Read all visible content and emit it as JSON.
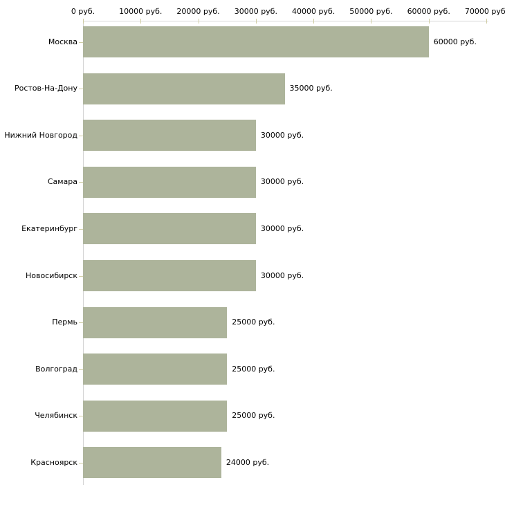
{
  "chart_data": {
    "type": "bar",
    "orientation": "horizontal",
    "title": "",
    "xlabel": "",
    "ylabel": "",
    "categories": [
      "Москва",
      "Ростов-На-Дону",
      "Нижний Новгород",
      "Самара",
      "Екатеринбург",
      "Новосибирск",
      "Пермь",
      "Волгоград",
      "Челябинск",
      "Красноярск"
    ],
    "values": [
      60000,
      35000,
      30000,
      30000,
      30000,
      30000,
      25000,
      25000,
      25000,
      24000
    ],
    "value_labels": [
      "60000 руб.",
      "35000 руб.",
      "30000 руб.",
      "30000 руб.",
      "30000 руб.",
      "30000 руб.",
      "25000 руб.",
      "25000 руб.",
      "25000 руб.",
      "24000 руб."
    ],
    "x_ticks": [
      0,
      10000,
      20000,
      30000,
      40000,
      50000,
      60000,
      70000
    ],
    "x_tick_labels": [
      "0 руб.",
      "10000 руб.",
      "20000 руб.",
      "30000 руб.",
      "40000 руб.",
      "50000 руб.",
      "60000 руб.",
      "70000 руб."
    ],
    "xlim": [
      0,
      70000
    ],
    "axis_position": "top",
    "grid": false,
    "legend": "none",
    "colors": {
      "bar": "#adb49b",
      "axis_line": "#d4d4d4",
      "tick_mark": "#cfcca2",
      "text": "#000000",
      "background": "#ffffff"
    }
  }
}
